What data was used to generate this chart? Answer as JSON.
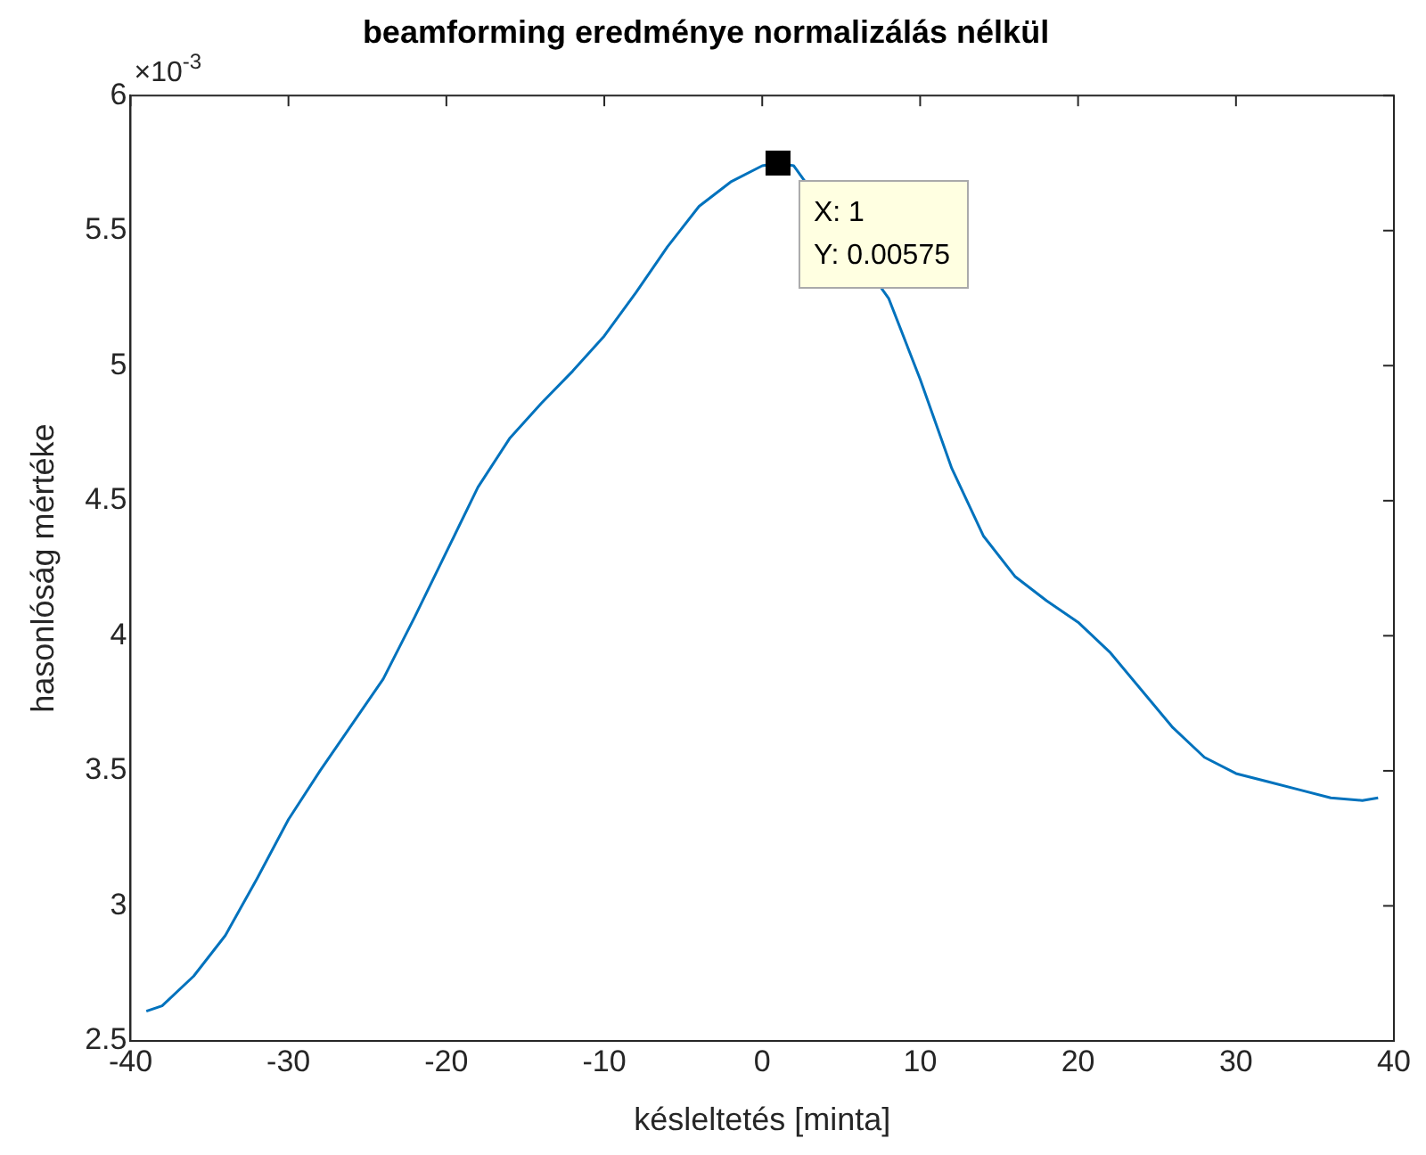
{
  "chart_data": {
    "type": "line",
    "title": "beamforming eredménye normalizálás nélkül",
    "xlabel": "késleltetés [minta]",
    "ylabel": "hasonlóság mértéke",
    "x": [
      -39,
      -38,
      -36,
      -34,
      -32,
      -30,
      -28,
      -26,
      -24,
      -22,
      -20,
      -18,
      -16,
      -14,
      -12,
      -10,
      -8,
      -6,
      -4,
      -2,
      0,
      1,
      2,
      4,
      6,
      8,
      10,
      12,
      14,
      16,
      18,
      20,
      22,
      24,
      26,
      28,
      30,
      32,
      34,
      36,
      38,
      39
    ],
    "series": [
      {
        "color": "#0072bd",
        "values": [
          2.61,
          2.63,
          2.74,
          2.89,
          3.1,
          3.32,
          3.5,
          3.67,
          3.84,
          4.07,
          4.31,
          4.55,
          4.73,
          4.86,
          4.98,
          5.11,
          5.27,
          5.44,
          5.59,
          5.68,
          5.74,
          5.75,
          5.74,
          null,
          null,
          5.25,
          4.95,
          4.62,
          4.37,
          4.22,
          4.13,
          4.05,
          3.94,
          3.8,
          3.66,
          3.55,
          3.49,
          3.46,
          3.43,
          3.4,
          3.39,
          3.4
        ]
      }
    ],
    "xlim": [
      -40,
      40
    ],
    "xticks": [
      -40,
      -30,
      -20,
      -10,
      0,
      10,
      20,
      30,
      40
    ],
    "ylim": [
      2.5,
      6
    ],
    "yticks": [
      2.5,
      3,
      3.5,
      4,
      4.5,
      5,
      5.5,
      6
    ],
    "annotations": [
      "×10$^{-3}$",
      {
        "text": "X: 1\nY: 0.00575",
        "x": 1,
        "y": 5.75
      }
    ],
    "grid": false,
    "legend": false,
    "marker": "none",
    "line_style": "solid"
  }
}
